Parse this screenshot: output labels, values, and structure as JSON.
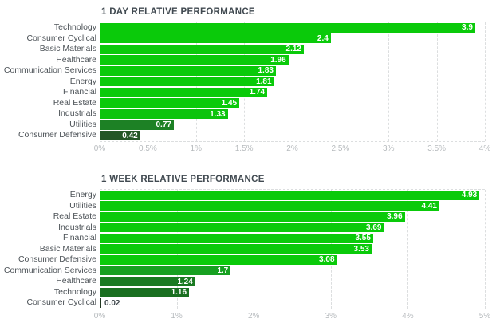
{
  "styles": {
    "background": "#ffffff",
    "title_color": "#414a51",
    "category_label_color": "#4c5257",
    "tick_label_color": "#b7bbbe",
    "grid_color": "#dcdedf",
    "value_label_inside": "#ffffff",
    "value_label_outside": "#3f474c",
    "bright_green": "#0aca0a"
  },
  "chart_data": [
    {
      "type": "bar",
      "orientation": "horizontal",
      "title": "1 DAY RELATIVE PERFORMANCE",
      "unit": "%",
      "xlim": [
        0,
        4
      ],
      "grid": "dashed-vertical",
      "legend": "none",
      "tick_values": [
        0,
        0.5,
        1,
        1.5,
        2,
        2.5,
        3,
        3.5,
        4
      ],
      "tick_labels": [
        "0%",
        "0.5%",
        "1%",
        "1.5%",
        "2%",
        "2.5%",
        "3%",
        "3.5%",
        "4%"
      ],
      "categories": [
        "Technology",
        "Consumer Cyclical",
        "Basic Materials",
        "Healthcare",
        "Communication Services",
        "Energy",
        "Financial",
        "Real Estate",
        "Industrials",
        "Utilities",
        "Consumer Defensive"
      ],
      "values": [
        3.9,
        2.4,
        2.12,
        1.96,
        1.83,
        1.81,
        1.74,
        1.45,
        1.33,
        0.77,
        0.42
      ],
      "value_labels": [
        "3.9",
        "2.4",
        "2.12",
        "1.96",
        "1.83",
        "1.81",
        "1.74",
        "1.45",
        "1.33",
        "0.77",
        "0.42"
      ],
      "bar_colors": [
        "#0aca0a",
        "#0aca0a",
        "#0aca0a",
        "#0aca0a",
        "#0aca0a",
        "#0aca0a",
        "#0aca0a",
        "#0aca0a",
        "#0cc40d",
        "#1d8125",
        "#235726"
      ]
    },
    {
      "type": "bar",
      "orientation": "horizontal",
      "title": "1 WEEK RELATIVE PERFORMANCE",
      "unit": "%",
      "xlim": [
        0,
        5
      ],
      "grid": "dashed-vertical",
      "legend": "none",
      "tick_values": [
        0,
        1,
        2,
        3,
        4,
        5
      ],
      "tick_labels": [
        "0%",
        "1%",
        "2%",
        "3%",
        "4%",
        "5%"
      ],
      "categories": [
        "Energy",
        "Utilities",
        "Real Estate",
        "Industrials",
        "Financial",
        "Basic Materials",
        "Consumer Defensive",
        "Communication Services",
        "Healthcare",
        "Technology",
        "Consumer Cyclical"
      ],
      "values": [
        4.93,
        4.41,
        3.96,
        3.69,
        3.55,
        3.53,
        3.08,
        1.7,
        1.24,
        1.16,
        0.02
      ],
      "value_labels": [
        "4.93",
        "4.41",
        "3.96",
        "3.69",
        "3.55",
        "3.53",
        "3.08",
        "1.7",
        "1.24",
        "1.16",
        "0.02"
      ],
      "bar_colors": [
        "#0aca0a",
        "#0aca0a",
        "#0aca0a",
        "#0aca0a",
        "#0aca0a",
        "#0aca0a",
        "#0aca0a",
        "#17a021",
        "#1a7a22",
        "#196f20",
        "#1f351f"
      ]
    }
  ]
}
